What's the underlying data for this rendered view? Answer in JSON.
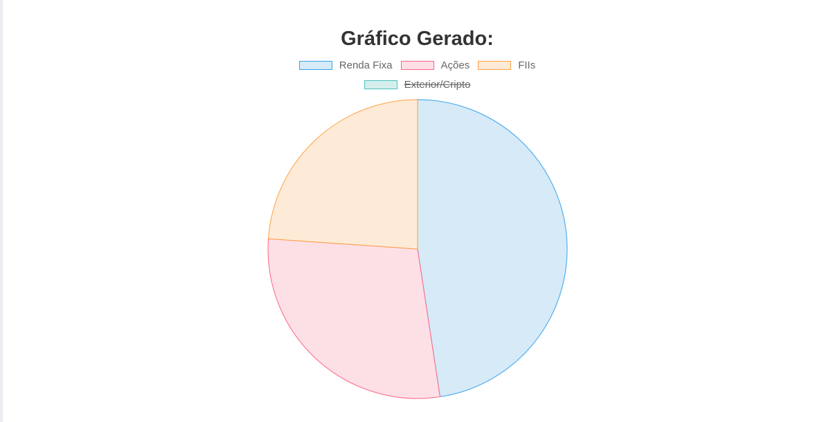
{
  "chart_data": {
    "type": "pie",
    "title": "Gráfico Gerado:",
    "categories": [
      "Renda Fixa",
      "Ações",
      "FIIs",
      "Exterior/Cripto"
    ],
    "values": [
      47.6,
      28.5,
      23.9,
      0
    ],
    "hidden": [
      false,
      false,
      false,
      true
    ],
    "fill_colors": [
      "#d6eaf8",
      "#fde0e6",
      "#fdebd7",
      "#d4eeee"
    ],
    "border_colors": [
      "#36a2eb",
      "#ff6384",
      "#ff9f40",
      "#4bc0c0"
    ],
    "legend_position": "top"
  }
}
